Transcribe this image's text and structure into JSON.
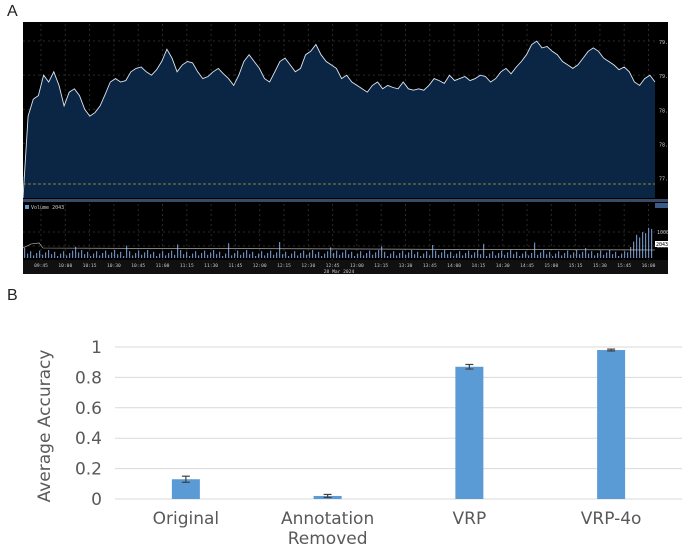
{
  "panels": {
    "a_label": "A",
    "b_label": "B"
  },
  "terminal": {
    "date_label": "28 Mar 2024",
    "price_ticks": [
      "79.50",
      "79.00",
      "78.50",
      "78.00",
      "77.50"
    ],
    "price_range": [
      77.2,
      79.75
    ],
    "price_series": [
      77.2,
      78.4,
      78.65,
      78.7,
      79.0,
      78.9,
      79.05,
      78.85,
      78.55,
      78.75,
      78.8,
      78.7,
      78.5,
      78.4,
      78.45,
      78.55,
      78.72,
      78.9,
      78.95,
      78.9,
      78.92,
      79.05,
      79.1,
      79.12,
      79.05,
      79.0,
      79.08,
      79.2,
      79.38,
      79.25,
      79.05,
      79.15,
      79.2,
      79.18,
      79.05,
      78.95,
      78.98,
      79.05,
      79.1,
      79.02,
      78.95,
      78.85,
      79.0,
      79.2,
      79.3,
      79.2,
      79.1,
      78.95,
      78.9,
      79.05,
      79.2,
      79.25,
      79.15,
      79.05,
      79.1,
      79.3,
      79.35,
      79.45,
      79.3,
      79.2,
      79.15,
      79.1,
      78.95,
      79.0,
      78.9,
      78.85,
      78.8,
      78.75,
      78.85,
      78.9,
      78.8,
      78.85,
      78.82,
      78.8,
      78.9,
      78.8,
      78.78,
      78.8,
      78.78,
      78.85,
      78.95,
      78.92,
      78.88,
      79.0,
      78.92,
      78.95,
      78.98,
      78.92,
      78.95,
      79.0,
      78.98,
      78.9,
      78.95,
      79.05,
      79.1,
      79.02,
      79.12,
      79.2,
      79.3,
      79.45,
      79.5,
      79.4,
      79.42,
      79.35,
      79.3,
      79.2,
      79.15,
      79.1,
      79.15,
      79.25,
      79.35,
      79.4,
      79.35,
      79.25,
      79.2,
      79.15,
      79.08,
      79.12,
      79.05,
      78.9,
      78.85,
      78.95,
      79.0,
      78.9
    ],
    "volume_ticks": [
      "10000",
      "5000"
    ],
    "volume_label": "Volume 2043",
    "last_badge": "2043",
    "time_ticks": [
      "09:45",
      "10:00",
      "10:15",
      "10:30",
      "10:45",
      "11:00",
      "11:15",
      "11:30",
      "11:45",
      "12:00",
      "12:15",
      "12:30",
      "12:45",
      "13:00",
      "13:15",
      "13:30",
      "13:45",
      "14:00",
      "14:15",
      "14:30",
      "14:45",
      "15:00",
      "15:15",
      "15:30",
      "15:45",
      "16:00"
    ],
    "colors": {
      "fill": "#0b2545",
      "line": "#dce6f2",
      "grid": "#2a2a2a",
      "baseline": "#b8a040"
    }
  },
  "chart_data": {
    "type": "bar",
    "categories": [
      "Original",
      "Annotation Removed",
      "VRP",
      "VRP-4o"
    ],
    "category_lines": [
      [
        "Original"
      ],
      [
        "Annotation",
        "Removed"
      ],
      [
        "VRP"
      ],
      [
        "VRP-4o"
      ]
    ],
    "values": [
      0.13,
      0.02,
      0.87,
      0.98
    ],
    "errors": [
      0.02,
      0.01,
      0.015,
      0.006
    ],
    "ylabel": "Average Accuracy",
    "ylim": [
      0,
      1
    ],
    "yticks": [
      0,
      0.2,
      0.4,
      0.6,
      0.8,
      1
    ],
    "ytick_labels": [
      "0",
      "0.2",
      "0.4",
      "0.6",
      "0.8",
      "1"
    ],
    "grid": true,
    "bar_color": "#5b9bd5"
  }
}
